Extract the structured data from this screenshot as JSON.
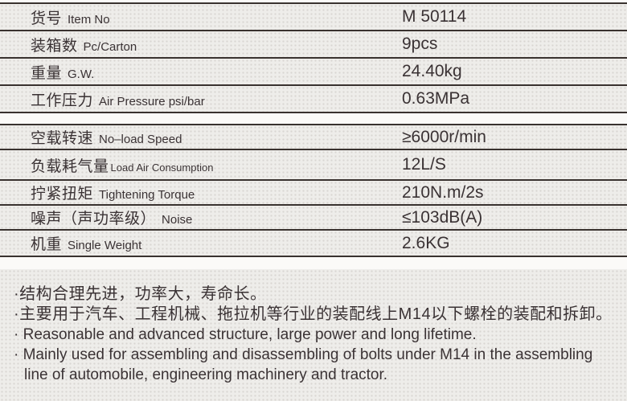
{
  "colors": {
    "background": "#eeedea",
    "page_base": "#fbfaf8",
    "rule_line": "#39322f",
    "text": "#3a3234"
  },
  "spec_table_1": {
    "rows": [
      {
        "label_zh": "货号",
        "label_en": "Item No",
        "value": "M 50114"
      },
      {
        "label_zh": "装箱数",
        "label_en": "Pc/Carton",
        "value": "9pcs"
      },
      {
        "label_zh": "重量",
        "label_en": "G.W.",
        "value": "24.40kg"
      },
      {
        "label_zh": "工作压力",
        "label_en": "Air Pressure psi/bar",
        "value": "0.63MPa"
      }
    ]
  },
  "spec_table_2": {
    "rows": [
      {
        "label_zh": "空载转速",
        "label_en": "No–load Speed",
        "value": "≥6000r/min"
      },
      {
        "label_zh": "负载耗气量",
        "label_en": "Load Air Consumption",
        "value": "12L/S"
      },
      {
        "label_zh": "拧紧扭矩",
        "label_en": "Tightening Torque",
        "value": "210N.m/2s"
      },
      {
        "label_zh": "噪声（声功率级）",
        "label_en": "Noise",
        "value": "≤103dB(A)"
      },
      {
        "label_zh": "机重",
        "label_en": "Single Weight",
        "value": "2.6KG"
      }
    ]
  },
  "notes": {
    "items": [
      "·结构合理先进，功率大，寿命长。",
      "·主要用于汽车、工程机械、拖拉机等行业的装配线上M14以下螺栓的装配和拆卸。",
      "· Reasonable and advanced structure, large power and long lifetime.",
      "· Mainly used for assembling and disassembling of bolts under M14 in the assembling line of automobile, engineering machinery and tractor."
    ]
  }
}
